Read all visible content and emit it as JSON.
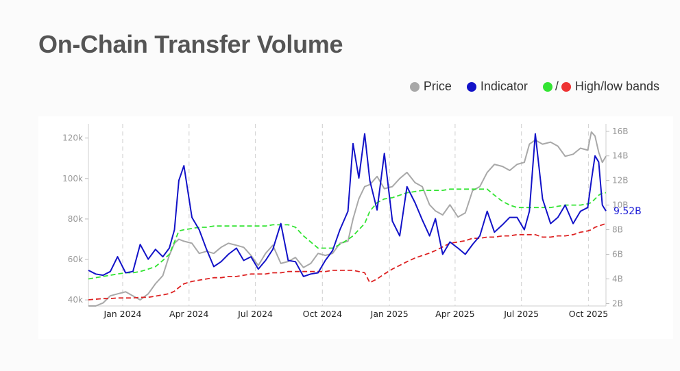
{
  "page": {
    "title": "On-Chain Transfer Volume"
  },
  "legend": {
    "price_label": "Price",
    "indicator_label": "Indicator",
    "bands_label": "High/low bands",
    "slash": "/"
  },
  "colors": {
    "price": "#a8a8a8",
    "indicator": "#1212c8",
    "high_band": "#33e433",
    "low_band": "#dd2222",
    "title": "#555555"
  },
  "chart_data": {
    "type": "line",
    "x": [
      "2023-11-15",
      "2023-11-25",
      "2023-12-05",
      "2023-12-15",
      "2023-12-25",
      "2024-01-05",
      "2024-01-15",
      "2024-01-25",
      "2024-02-05",
      "2024-02-15",
      "2024-02-25",
      "2024-03-05",
      "2024-03-12",
      "2024-03-18",
      "2024-03-25",
      "2024-04-05",
      "2024-04-15",
      "2024-04-25",
      "2024-05-05",
      "2024-05-15",
      "2024-05-25",
      "2024-06-05",
      "2024-06-15",
      "2024-06-25",
      "2024-07-05",
      "2024-07-15",
      "2024-07-25",
      "2024-08-05",
      "2024-08-15",
      "2024-08-25",
      "2024-09-05",
      "2024-09-15",
      "2024-09-25",
      "2024-10-05",
      "2024-10-15",
      "2024-10-25",
      "2024-11-05",
      "2024-11-12",
      "2024-11-20",
      "2024-11-28",
      "2024-12-05",
      "2024-12-15",
      "2024-12-25",
      "2025-01-05",
      "2025-01-15",
      "2025-01-25",
      "2025-02-05",
      "2025-02-15",
      "2025-02-25",
      "2025-03-05",
      "2025-03-15",
      "2025-03-25",
      "2025-04-05",
      "2025-04-15",
      "2025-04-25",
      "2025-05-05",
      "2025-05-15",
      "2025-05-25",
      "2025-06-05",
      "2025-06-15",
      "2025-06-25",
      "2025-07-05",
      "2025-07-12",
      "2025-07-20",
      "2025-07-30",
      "2025-08-10",
      "2025-08-20",
      "2025-08-30",
      "2025-09-10",
      "2025-09-20",
      "2025-09-30",
      "2025-10-05",
      "2025-10-10",
      "2025-10-15",
      "2025-10-20",
      "2025-10-25"
    ],
    "x_ticks": [
      "Jan 2024",
      "Apr 2024",
      "Jul 2024",
      "Oct 2024",
      "Jan 2025",
      "Apr 2025",
      "Jul 2025",
      "Oct 2025"
    ],
    "y_left": {
      "label": "",
      "range": [
        37000,
        127000
      ],
      "ticks": [
        "40k",
        "60k",
        "80k",
        "100k",
        "120k"
      ]
    },
    "y_right": {
      "label": "",
      "range": [
        1.8,
        16.6
      ],
      "ticks": [
        "2B",
        "4B",
        "6B",
        "8B",
        "10B",
        "12B",
        "14B",
        "16B"
      ]
    },
    "series": [
      {
        "name": "Price",
        "axis": "left",
        "color": "#a8a8a8",
        "values": [
          36000,
          37000,
          38500,
          42000,
          43000,
          44000,
          42000,
          40000,
          43000,
          48000,
          52000,
          62000,
          68000,
          70000,
          69000,
          68000,
          63000,
          64000,
          63000,
          66000,
          68000,
          67000,
          66000,
          62000,
          57000,
          63000,
          67000,
          58000,
          59000,
          61000,
          56000,
          58000,
          63000,
          62000,
          63000,
          68000,
          69000,
          80000,
          90000,
          96000,
          97000,
          101000,
          95000,
          96000,
          100000,
          103000,
          98000,
          96000,
          87000,
          84000,
          82000,
          87000,
          81000,
          83000,
          94000,
          96000,
          103000,
          107000,
          106000,
          104000,
          107000,
          108000,
          117000,
          119000,
          117000,
          118000,
          116000,
          111000,
          112000,
          115000,
          114000,
          123000,
          121000,
          113000,
          108000,
          111000
        ]
      },
      {
        "name": "Indicator",
        "axis": "right",
        "color": "#1212c8",
        "values": [
          4.7,
          4.4,
          4.3,
          4.6,
          5.8,
          4.5,
          4.6,
          6.8,
          5.6,
          6.4,
          5.8,
          6.5,
          8.0,
          12.0,
          13.2,
          9.0,
          8.0,
          6.4,
          5.0,
          5.4,
          6.0,
          6.5,
          5.5,
          5.8,
          4.8,
          5.5,
          6.4,
          8.5,
          5.5,
          5.4,
          4.2,
          4.4,
          4.5,
          5.5,
          6.3,
          8.0,
          9.5,
          15.0,
          12.2,
          15.8,
          12.0,
          9.6,
          14.2,
          8.7,
          7.5,
          11.5,
          10.2,
          8.8,
          7.5,
          8.9,
          6.0,
          7.0,
          6.5,
          6.0,
          6.8,
          7.5,
          9.5,
          7.8,
          8.4,
          9.0,
          9.0,
          8.0,
          9.5,
          15.8,
          10.5,
          8.5,
          9.0,
          10.0,
          8.5,
          9.5,
          9.8,
          12.0,
          14.0,
          13.5,
          10.0,
          9.52
        ]
      },
      {
        "name": "High band",
        "axis": "right",
        "color": "#33e433",
        "values": [
          4.0,
          4.1,
          4.2,
          4.3,
          4.4,
          4.5,
          4.5,
          4.6,
          4.8,
          5.0,
          5.5,
          6.0,
          7.0,
          7.9,
          8.0,
          8.1,
          8.2,
          8.2,
          8.3,
          8.3,
          8.3,
          8.3,
          8.3,
          8.3,
          8.3,
          8.3,
          8.4,
          8.4,
          8.4,
          8.2,
          7.5,
          7.0,
          6.5,
          6.5,
          6.5,
          6.8,
          7.2,
          7.5,
          8.0,
          8.5,
          9.5,
          10.2,
          10.5,
          10.6,
          10.8,
          11.0,
          11.1,
          11.2,
          11.2,
          11.2,
          11.2,
          11.3,
          11.3,
          11.3,
          11.3,
          11.3,
          11.3,
          10.8,
          10.3,
          10.0,
          9.8,
          9.8,
          9.8,
          9.8,
          9.8,
          9.8,
          9.9,
          10.0,
          10.0,
          10.0,
          10.1,
          10.2,
          10.5,
          10.8,
          11.0,
          11.0
        ]
      },
      {
        "name": "Low band",
        "axis": "right",
        "color": "#dd2222",
        "values": [
          2.3,
          2.35,
          2.4,
          2.4,
          2.45,
          2.45,
          2.45,
          2.5,
          2.5,
          2.6,
          2.7,
          2.8,
          3.0,
          3.3,
          3.6,
          3.8,
          3.9,
          4.0,
          4.1,
          4.1,
          4.2,
          4.2,
          4.3,
          4.4,
          4.4,
          4.4,
          4.5,
          4.5,
          4.6,
          4.6,
          4.6,
          4.6,
          4.6,
          4.6,
          4.7,
          4.7,
          4.7,
          4.7,
          4.6,
          4.5,
          3.7,
          4.0,
          4.4,
          4.8,
          5.1,
          5.4,
          5.7,
          5.9,
          6.1,
          6.3,
          6.6,
          6.9,
          7.0,
          7.1,
          7.3,
          7.3,
          7.4,
          7.4,
          7.5,
          7.5,
          7.6,
          7.6,
          7.6,
          7.6,
          7.4,
          7.4,
          7.5,
          7.5,
          7.6,
          7.8,
          7.9,
          8.0,
          8.2,
          8.3,
          8.4,
          8.5
        ]
      }
    ],
    "last_value_label": "9.52B",
    "grid": "vertical dashed at x ticks",
    "legend_position": "top-right"
  }
}
